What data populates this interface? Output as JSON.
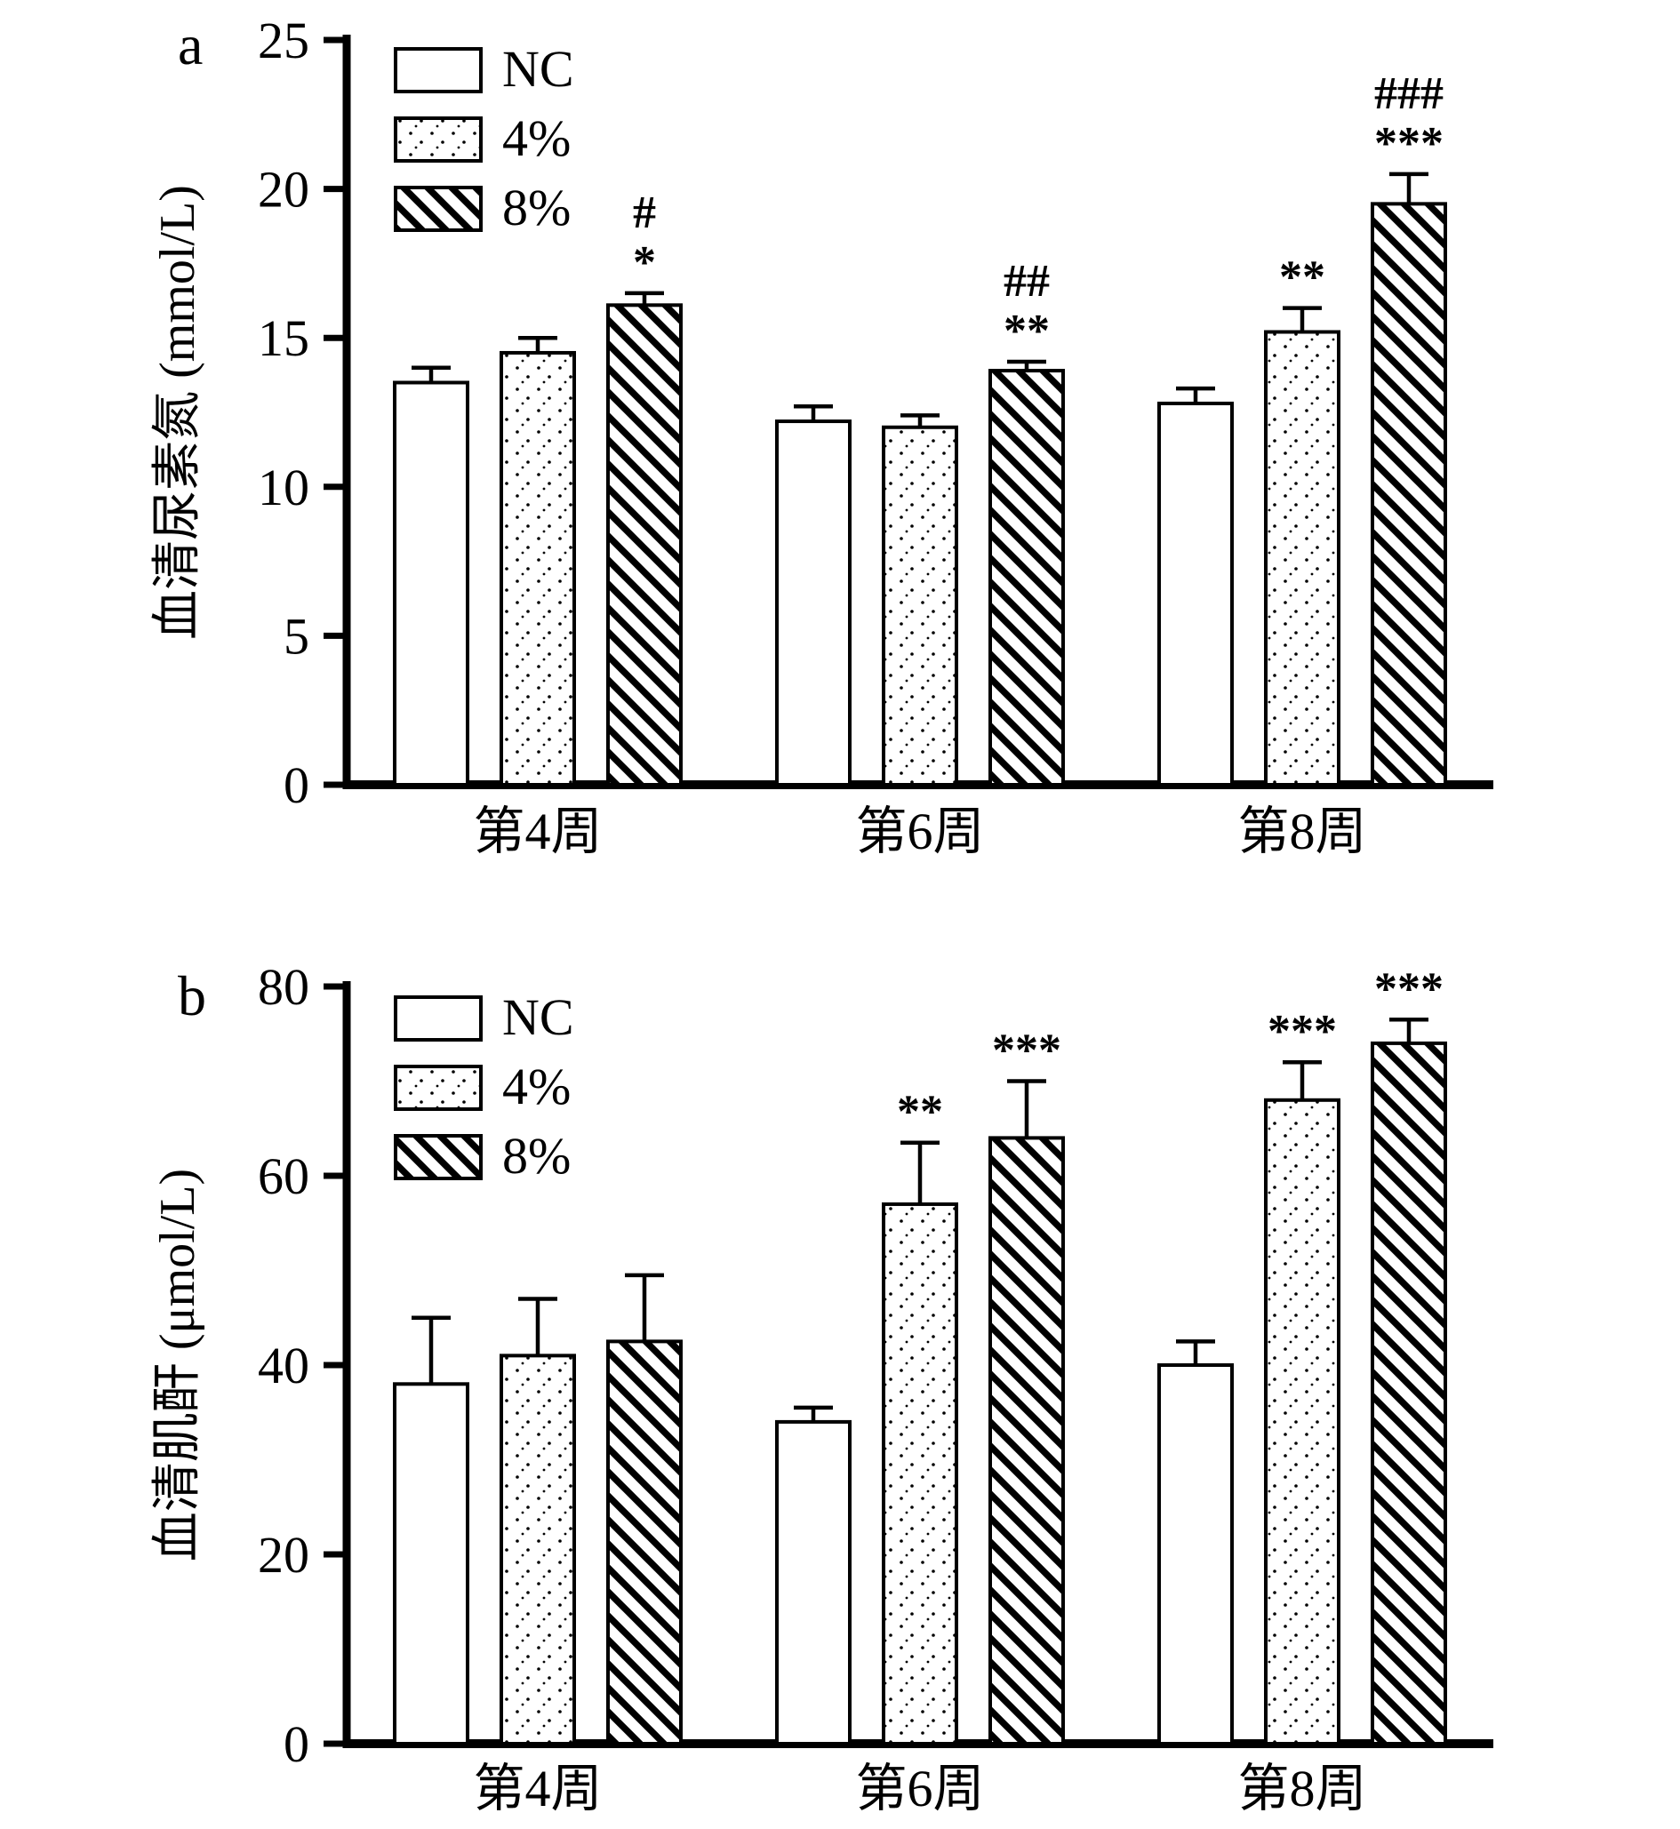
{
  "figure": {
    "panels": [
      "a",
      "b"
    ]
  },
  "chart_data": [
    {
      "type": "bar",
      "panel_label": "a",
      "title": "",
      "xlabel": "",
      "ylabel": "血清尿素氮 (mmol/L)",
      "ylim": [
        0,
        25
      ],
      "yticks": [
        0,
        5,
        10,
        15,
        20,
        25
      ],
      "categories": [
        "第4周",
        "第6周",
        "第8周"
      ],
      "legend": [
        "NC",
        "4%",
        "8%"
      ],
      "legend_position": "top-left-inside",
      "grid": false,
      "series": [
        {
          "name": "NC",
          "values": [
            13.5,
            12.2,
            12.8
          ],
          "errors": [
            0.5,
            0.5,
            0.5
          ],
          "annotations": [
            [],
            [],
            []
          ]
        },
        {
          "name": "4%",
          "values": [
            14.5,
            12.0,
            15.2
          ],
          "errors": [
            0.5,
            0.4,
            0.8
          ],
          "annotations": [
            [],
            [],
            [
              "**"
            ]
          ]
        },
        {
          "name": "8%",
          "values": [
            16.1,
            13.9,
            19.5
          ],
          "errors": [
            0.4,
            0.3,
            1.0
          ],
          "annotations": [
            [
              "#",
              "*"
            ],
            [
              "##",
              "**"
            ],
            [
              "###",
              "***"
            ]
          ]
        }
      ]
    },
    {
      "type": "bar",
      "panel_label": "b",
      "title": "",
      "xlabel": "",
      "ylabel": "血清肌酐 (μmol/L)",
      "ylim": [
        0,
        80
      ],
      "yticks": [
        0,
        20,
        40,
        60,
        80
      ],
      "categories": [
        "第4周",
        "第6周",
        "第8周"
      ],
      "legend": [
        "NC",
        "4%",
        "8%"
      ],
      "legend_position": "top-left-inside",
      "grid": false,
      "series": [
        {
          "name": "NC",
          "values": [
            38,
            34,
            40
          ],
          "errors": [
            7,
            1.5,
            2.5
          ],
          "annotations": [
            [],
            [],
            []
          ]
        },
        {
          "name": "4%",
          "values": [
            41,
            57,
            68
          ],
          "errors": [
            6,
            6.5,
            4
          ],
          "annotations": [
            [],
            [
              "**"
            ],
            [
              "***"
            ]
          ]
        },
        {
          "name": "8%",
          "values": [
            42.5,
            64,
            74
          ],
          "errors": [
            7,
            6,
            2.5
          ],
          "annotations": [
            [],
            [
              "***"
            ],
            [
              "***"
            ]
          ]
        }
      ]
    }
  ],
  "style_colors": {
    "foreground": "#000000",
    "background": "#ffffff"
  }
}
